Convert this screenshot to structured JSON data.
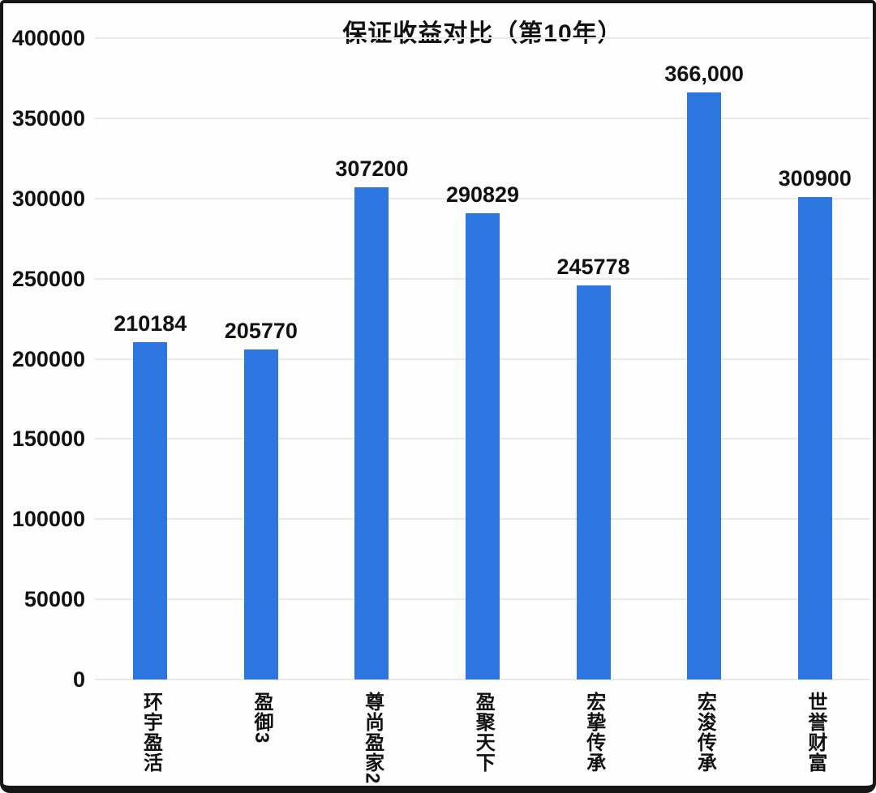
{
  "chart_data": {
    "type": "bar",
    "title": "保证收益对比（第10年）",
    "categories": [
      "环宇盈活",
      "盈御3",
      "尊尚盈家2",
      "盈聚天下",
      "宏挚传承",
      "宏浚传承",
      "世誉财富"
    ],
    "values": [
      210184,
      205770,
      307200,
      290829,
      245778,
      366000,
      300900
    ],
    "value_labels": [
      "210184",
      "205770",
      "307200",
      "290829",
      "245778",
      "366,000",
      "300900"
    ],
    "y_ticks": [
      0,
      50000,
      100000,
      150000,
      200000,
      250000,
      300000,
      350000,
      400000
    ],
    "ylim": [
      0,
      400000
    ],
    "xlabel": "",
    "ylabel": "",
    "grid": true,
    "legend": false,
    "bar_color": "#2e76df",
    "gridline_color": "#e9e9e9",
    "text_color": "#111111",
    "frame_color": "#161616"
  }
}
